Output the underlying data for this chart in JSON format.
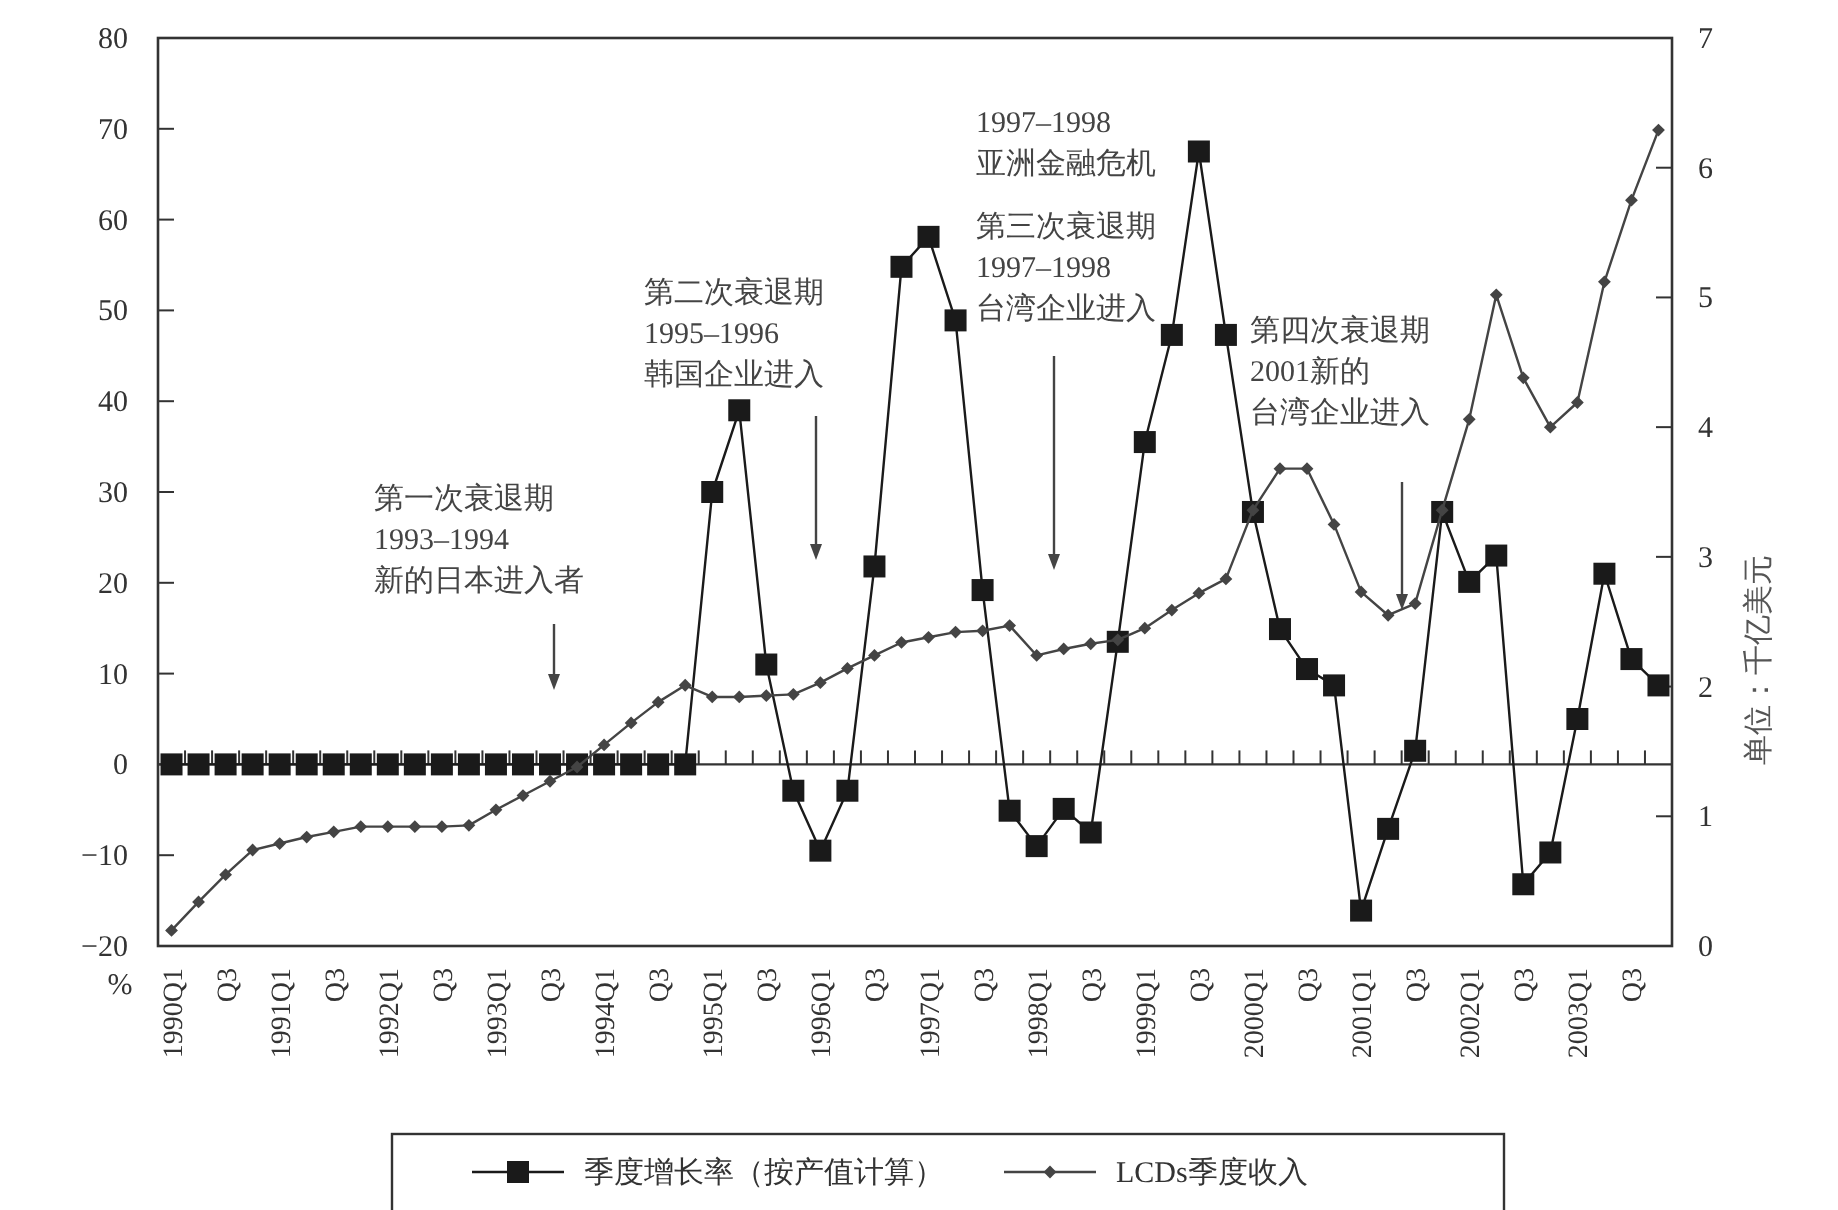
{
  "chart_data": {
    "type": "line",
    "categories": [
      "1990Q1",
      null,
      "Q3",
      null,
      "1991Q1",
      null,
      "Q3",
      null,
      "1992Q1",
      null,
      "Q3",
      null,
      "1993Q1",
      null,
      "Q3",
      null,
      "1994Q1",
      null,
      "Q3",
      null,
      "1995Q1",
      null,
      "Q3",
      null,
      "1996Q1",
      null,
      "Q3",
      null,
      "1997Q1",
      null,
      "Q3",
      null,
      "1998Q1",
      null,
      "Q3",
      null,
      "1999Q1",
      null,
      "Q3",
      null,
      "2000Q1",
      null,
      "Q3",
      null,
      "2001Q1",
      null,
      "Q3",
      null,
      "2002Q1",
      null,
      "Q3",
      null,
      "2003Q1",
      null,
      "Q3",
      null
    ],
    "series": [
      {
        "name": "季度增长率（按产值计算）",
        "color": "#1a1a1a",
        "marker": "square",
        "axis": "y",
        "values": [
          0,
          0,
          0,
          0,
          0,
          0,
          0,
          0,
          0,
          0,
          0,
          0,
          0,
          0,
          0,
          0,
          0,
          0,
          0,
          0,
          30,
          39,
          11,
          -2.9,
          -9.5,
          -2.9,
          21.8,
          54.8,
          58.1,
          48.9,
          19.2,
          -5.1,
          -9,
          -4.9,
          -7.5,
          13.5,
          35.5,
          47.3,
          67.5,
          47.3,
          27.8,
          14.9,
          10.5,
          8.7,
          -16.1,
          -7.1,
          1.5,
          27.8,
          20.1,
          23,
          -13.2,
          -9.7,
          5,
          21,
          11.6,
          8.7
        ]
      },
      {
        "name": "LCDs季度收入",
        "color": "#444444",
        "marker": "diamond",
        "axis": "y2",
        "values": [
          0.12,
          0.34,
          0.55,
          0.74,
          0.79,
          0.84,
          0.88,
          0.92,
          0.92,
          0.92,
          0.92,
          0.93,
          1.05,
          1.16,
          1.27,
          1.38,
          1.55,
          1.72,
          1.88,
          2.01,
          1.92,
          1.92,
          1.93,
          1.94,
          2.03,
          2.14,
          2.24,
          2.34,
          2.38,
          2.42,
          2.43,
          2.47,
          2.24,
          2.29,
          2.33,
          2.36,
          2.45,
          2.59,
          2.72,
          2.83,
          3.36,
          3.68,
          3.68,
          3.25,
          2.73,
          2.55,
          2.64,
          3.36,
          4.06,
          5.02,
          4.38,
          4,
          4.19,
          5.12,
          5.75,
          6.29
        ]
      }
    ],
    "ylabel": "%",
    "y2label": "单位：千亿美元",
    "ylim": [
      -20,
      80
    ],
    "yticks": [
      -20,
      -10,
      0,
      10,
      20,
      30,
      40,
      50,
      60,
      70,
      80
    ],
    "y2lim": [
      0,
      7
    ],
    "y2ticks": [
      0,
      1,
      2,
      3,
      4,
      5,
      6,
      7
    ],
    "line_style": "solid",
    "legend": "bottom",
    "annotations": [
      "第一次衰退期",
      "1993–1994",
      "新的日本进入者",
      "第二次衰退期",
      "1995–1996",
      "韩国企业进入",
      "1997–1998",
      "亚洲金融危机",
      "第三次衰退期",
      "1997–1998",
      "台湾企业进入",
      "第四次衰退期",
      "2001新的",
      "台湾企业进入"
    ]
  }
}
